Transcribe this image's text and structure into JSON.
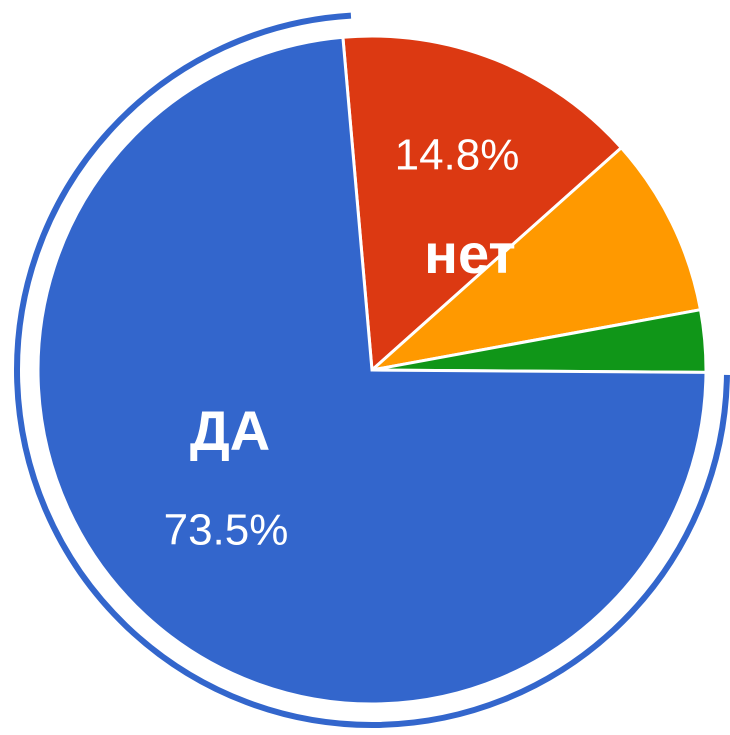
{
  "chart_data": {
    "type": "pie",
    "categories": [
      "нет",
      null,
      null,
      "ДА"
    ],
    "values": [
      14.8,
      8.7,
      3.0,
      73.5
    ],
    "value_labels": [
      "14.8%",
      null,
      null,
      "73.5%"
    ],
    "colors": [
      "#dc3912",
      "#ff9900",
      "#109618",
      "#3366cc"
    ]
  }
}
